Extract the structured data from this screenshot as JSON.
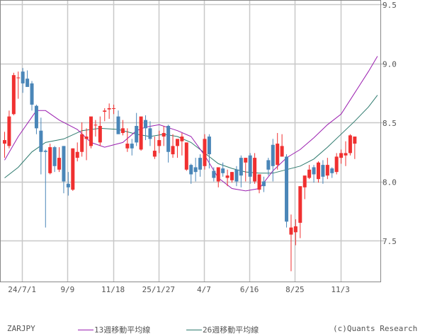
{
  "symbol": "ZARJPY",
  "credit": "(c)Quants Research",
  "legend": [
    {
      "label": "13週移動平均線",
      "color": "#9b1fb0"
    },
    {
      "label": "26週移動平均線",
      "color": "#2e7a6e"
    }
  ],
  "colors": {
    "up": "#f03030",
    "down": "#4a86b8",
    "grid": "#c8c8c8",
    "frame": "#888888",
    "ma13": "#9b1fb0",
    "ma26": "#2e7a6e"
  },
  "chart_data": {
    "type": "candlestick",
    "title": "ZARJPY",
    "interval": "weekly",
    "xlabel": "",
    "ylabel": "",
    "ylim": [
      7.18,
      9.53
    ],
    "y_ticks": [
      7.5,
      8.0,
      8.5,
      9.0,
      9.5
    ],
    "y_tick_labels": [
      "7.5",
      "8.0",
      "8.5",
      "9.0",
      "9.5"
    ],
    "x_tick_labels": [
      "24/7/1",
      "9/9",
      "11/18",
      "25/1/27",
      "4/7",
      "6/16",
      "8/25",
      "11/3"
    ],
    "x_tick_index": [
      4,
      14,
      24,
      34,
      44,
      54,
      64,
      74
    ],
    "grid": true,
    "legend_position": "bottom",
    "series": [
      {
        "name": "ZARJPY",
        "type": "candlestick",
        "ohlc": [
          [
            8.32,
            8.42,
            8.2,
            8.35
          ],
          [
            8.3,
            8.6,
            8.28,
            8.55
          ],
          [
            8.57,
            8.92,
            8.56,
            8.9
          ],
          [
            8.88,
            8.93,
            8.7,
            8.88
          ],
          [
            8.93,
            8.96,
            8.75,
            8.83
          ],
          [
            8.87,
            8.94,
            8.81,
            8.8
          ],
          [
            8.83,
            8.85,
            8.6,
            8.65
          ],
          [
            8.64,
            8.65,
            8.4,
            8.45
          ],
          [
            8.43,
            8.54,
            8.06,
            8.25
          ],
          [
            8.26,
            8.27,
            7.61,
            8.25
          ],
          [
            8.07,
            8.32,
            8.06,
            8.29
          ],
          [
            8.29,
            8.3,
            8.08,
            8.13
          ],
          [
            8.1,
            8.29,
            8.08,
            8.2
          ],
          [
            8.3,
            8.3,
            7.9,
            8.0
          ],
          [
            7.98,
            8.08,
            7.88,
            7.95
          ],
          [
            7.93,
            8.28,
            7.92,
            8.28
          ],
          [
            8.2,
            8.33,
            8.17,
            8.25
          ],
          [
            8.25,
            8.5,
            8.21,
            8.4
          ],
          [
            8.36,
            8.45,
            8.18,
            8.38
          ],
          [
            8.3,
            8.48,
            8.28,
            8.55
          ],
          [
            8.48,
            8.52,
            8.38,
            8.48
          ],
          [
            8.33,
            8.55,
            8.3,
            8.47
          ],
          [
            8.59,
            8.62,
            8.51,
            8.6
          ],
          [
            8.61,
            8.66,
            8.53,
            8.62
          ],
          [
            8.62,
            8.65,
            8.57,
            8.62
          ],
          [
            8.55,
            8.6,
            8.45,
            8.4
          ],
          [
            8.41,
            8.52,
            8.39,
            8.45
          ],
          [
            8.28,
            8.45,
            8.25,
            8.32
          ],
          [
            8.32,
            8.36,
            8.22,
            8.28
          ],
          [
            8.47,
            8.58,
            8.3,
            8.33
          ],
          [
            8.27,
            8.52,
            8.26,
            8.55
          ],
          [
            8.52,
            8.56,
            8.35,
            8.45
          ],
          [
            8.45,
            8.51,
            8.3,
            8.36
          ],
          [
            8.21,
            8.38,
            8.19,
            8.26
          ],
          [
            8.3,
            8.43,
            8.24,
            8.35
          ],
          [
            8.38,
            8.47,
            8.3,
            8.41
          ],
          [
            8.47,
            8.48,
            8.16,
            8.25
          ],
          [
            8.23,
            8.4,
            8.2,
            8.3
          ],
          [
            8.3,
            8.36,
            8.2,
            8.36
          ],
          [
            8.34,
            8.41,
            8.22,
            8.38
          ],
          [
            8.1,
            8.33,
            8.09,
            8.33
          ],
          [
            8.14,
            8.15,
            7.98,
            8.06
          ],
          [
            8.12,
            8.2,
            8.0,
            8.08
          ],
          [
            8.2,
            8.23,
            8.04,
            8.1
          ],
          [
            8.13,
            8.4,
            8.1,
            8.36
          ],
          [
            8.38,
            8.4,
            8.11,
            8.23
          ],
          [
            8.09,
            8.12,
            8.0,
            8.03
          ],
          [
            8.0,
            8.09,
            7.95,
            8.12
          ],
          [
            8.11,
            8.16,
            8.04,
            8.07
          ],
          [
            8.03,
            8.1,
            7.96,
            8.05
          ],
          [
            8.01,
            8.08,
            7.99,
            8.08
          ],
          [
            8.1,
            8.13,
            7.96,
            8.0
          ],
          [
            8.2,
            8.22,
            7.95,
            8.05
          ],
          [
            8.16,
            8.2,
            8.0,
            8.2
          ],
          [
            8.22,
            8.24,
            7.98,
            8.04
          ],
          [
            8.0,
            8.24,
            7.98,
            8.2
          ],
          [
            7.93,
            8.06,
            7.9,
            8.06
          ],
          [
            8.0,
            8.04,
            7.91,
            7.96
          ],
          [
            8.18,
            8.2,
            8.05,
            8.1
          ],
          [
            8.31,
            8.36,
            8.0,
            8.13
          ],
          [
            8.14,
            8.41,
            8.1,
            8.32
          ],
          [
            8.21,
            8.4,
            8.21,
            8.3
          ],
          [
            8.21,
            8.23,
            7.61,
            7.66
          ],
          [
            7.55,
            7.72,
            7.24,
            7.61
          ],
          [
            7.57,
            7.68,
            7.46,
            7.62
          ],
          [
            7.65,
            7.89,
            7.52,
            7.96
          ],
          [
            7.95,
            8.0,
            7.85,
            8.05
          ],
          [
            8.03,
            8.14,
            8.02,
            8.1
          ],
          [
            8.12,
            8.14,
            7.99,
            8.06
          ],
          [
            8.02,
            8.17,
            7.99,
            8.16
          ],
          [
            8.14,
            8.18,
            7.98,
            8.04
          ],
          [
            8.05,
            8.2,
            8.02,
            8.14
          ],
          [
            8.11,
            8.12,
            8.03,
            8.07
          ],
          [
            8.08,
            8.24,
            8.06,
            8.21
          ],
          [
            8.2,
            8.27,
            8.15,
            8.24
          ],
          [
            8.22,
            8.34,
            8.13,
            8.24
          ],
          [
            8.24,
            8.4,
            8.22,
            8.39
          ],
          [
            8.32,
            8.34,
            8.19,
            8.38
          ]
        ]
      },
      {
        "name": "13週移動平均線",
        "type": "line",
        "points": [
          [
            0,
            8.18
          ],
          [
            3,
            8.38
          ],
          [
            7,
            8.6
          ],
          [
            9,
            8.6
          ],
          [
            12,
            8.52
          ],
          [
            16,
            8.44
          ],
          [
            19,
            8.33
          ],
          [
            22,
            8.29
          ],
          [
            26,
            8.33
          ],
          [
            29,
            8.43
          ],
          [
            31,
            8.46
          ],
          [
            34,
            8.48
          ],
          [
            38,
            8.43
          ],
          [
            41,
            8.38
          ],
          [
            44,
            8.22
          ],
          [
            47,
            8.03
          ],
          [
            50,
            7.94
          ],
          [
            53,
            7.92
          ],
          [
            56,
            7.94
          ],
          [
            59,
            8.09
          ],
          [
            62,
            8.2
          ],
          [
            65,
            8.27
          ],
          [
            68,
            8.37
          ],
          [
            71,
            8.48
          ],
          [
            74,
            8.57
          ],
          [
            77,
            8.75
          ],
          [
            80,
            8.93
          ],
          [
            82,
            9.06
          ]
        ]
      },
      {
        "name": "26週移動平均線",
        "type": "line",
        "points": [
          [
            0,
            8.03
          ],
          [
            3,
            8.12
          ],
          [
            6,
            8.25
          ],
          [
            9,
            8.33
          ],
          [
            13,
            8.36
          ],
          [
            17,
            8.43
          ],
          [
            21,
            8.45
          ],
          [
            25,
            8.44
          ],
          [
            29,
            8.4
          ],
          [
            32,
            8.38
          ],
          [
            35,
            8.4
          ],
          [
            38,
            8.38
          ],
          [
            41,
            8.33
          ],
          [
            44,
            8.24
          ],
          [
            47,
            8.15
          ],
          [
            50,
            8.11
          ],
          [
            53,
            8.08
          ],
          [
            56,
            8.07
          ],
          [
            59,
            8.07
          ],
          [
            62,
            8.1
          ],
          [
            65,
            8.13
          ],
          [
            68,
            8.19
          ],
          [
            71,
            8.29
          ],
          [
            74,
            8.4
          ],
          [
            77,
            8.51
          ],
          [
            80,
            8.63
          ],
          [
            82,
            8.73
          ]
        ]
      }
    ]
  }
}
